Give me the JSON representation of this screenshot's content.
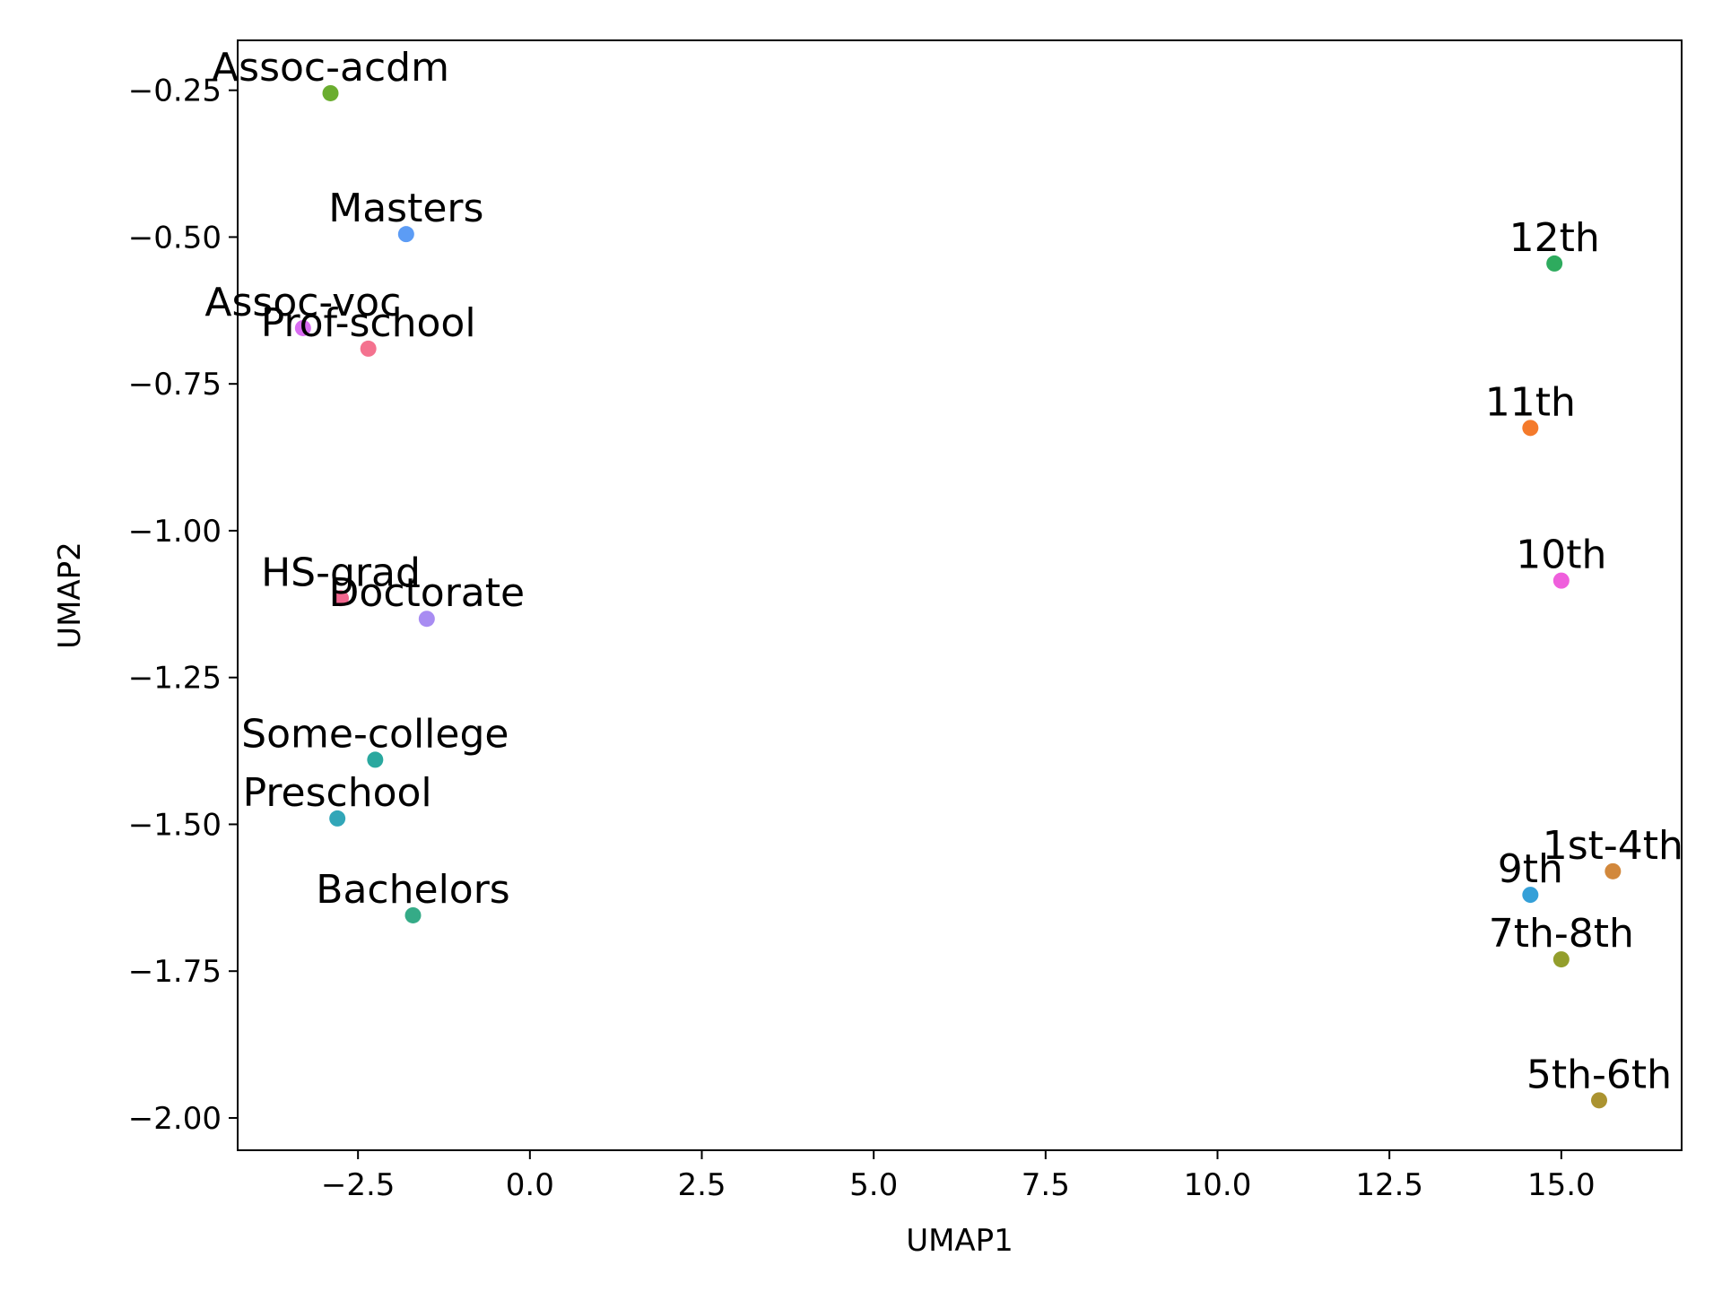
{
  "chart_data": {
    "type": "scatter",
    "title": "",
    "xlabel": "UMAP1",
    "ylabel": "UMAP2",
    "xlim": [
      -4.25,
      16.75
    ],
    "ylim": [
      -2.055,
      -0.165
    ],
    "xticks": [
      -2.5,
      0.0,
      2.5,
      5.0,
      7.5,
      10.0,
      12.5,
      15.0
    ],
    "xtick_labels": [
      "−2.5",
      "0.0",
      "2.5",
      "5.0",
      "7.5",
      "10.0",
      "12.5",
      "15.0"
    ],
    "yticks": [
      -0.25,
      -0.5,
      -0.75,
      -1.0,
      -1.25,
      -1.5,
      -1.75,
      -2.0
    ],
    "ytick_labels": [
      "−0.25",
      "−0.50",
      "−0.75",
      "−1.00",
      "−1.25",
      "−1.50",
      "−1.75",
      "−2.00"
    ],
    "grid": false,
    "points": [
      {
        "label": "Assoc-acdm",
        "x": -2.9,
        "y": -0.255,
        "color": "#6aad2f"
      },
      {
        "label": "Masters",
        "x": -1.8,
        "y": -0.495,
        "color": "#5c9cf5"
      },
      {
        "label": "Assoc-voc",
        "x": -3.3,
        "y": -0.655,
        "color": "#d96cf2"
      },
      {
        "label": "Prof-school",
        "x": -2.35,
        "y": -0.69,
        "color": "#f4728f"
      },
      {
        "label": "HS-grad",
        "x": -2.75,
        "y": -1.115,
        "color": "#f2668f"
      },
      {
        "label": "Doctorate",
        "x": -1.5,
        "y": -1.15,
        "color": "#a88cf2"
      },
      {
        "label": "Some-college",
        "x": -2.25,
        "y": -1.39,
        "color": "#2aa89f"
      },
      {
        "label": "Preschool",
        "x": -2.8,
        "y": -1.49,
        "color": "#31a6b8"
      },
      {
        "label": "Bachelors",
        "x": -1.7,
        "y": -1.655,
        "color": "#35ab87"
      },
      {
        "label": "12th",
        "x": 14.9,
        "y": -0.545,
        "color": "#2eab5e"
      },
      {
        "label": "11th",
        "x": 14.55,
        "y": -0.825,
        "color": "#f47a2b"
      },
      {
        "label": "10th",
        "x": 15.0,
        "y": -1.085,
        "color": "#ef5fdc"
      },
      {
        "label": "1st-4th",
        "x": 15.75,
        "y": -1.58,
        "color": "#d2883c"
      },
      {
        "label": "9th",
        "x": 14.55,
        "y": -1.62,
        "color": "#35a0d8"
      },
      {
        "label": "7th-8th",
        "x": 15.0,
        "y": -1.73,
        "color": "#939e2c"
      },
      {
        "label": "5th-6th",
        "x": 15.55,
        "y": -1.97,
        "color": "#ab9330"
      }
    ]
  }
}
